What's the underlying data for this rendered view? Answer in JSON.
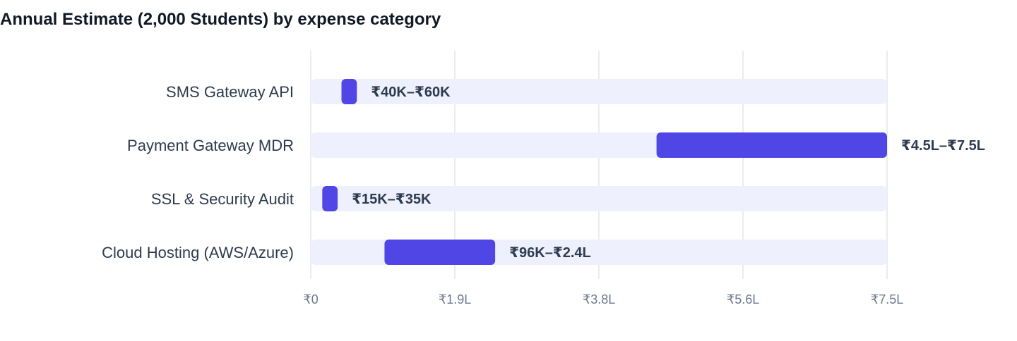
{
  "chart_data": {
    "type": "bar",
    "subtype": "horizontal-range",
    "title": "Annual Estimate (2,000 Students) by expense category",
    "categories": [
      "SMS Gateway API",
      "Payment Gateway MDR",
      "SSL & Security Audit",
      "Cloud Hosting (AWS/Azure)"
    ],
    "ranges": [
      {
        "low": 40000,
        "high": 60000,
        "label": "₹40K–₹60K"
      },
      {
        "low": 450000,
        "high": 750000,
        "label": "₹4.5L–₹7.5L"
      },
      {
        "low": 15000,
        "high": 35000,
        "label": "₹15K–₹35K"
      },
      {
        "low": 96000,
        "high": 240000,
        "label": "₹96K–₹2.4L"
      }
    ],
    "xlim": [
      0,
      750000
    ],
    "ticks": [
      {
        "value": 0,
        "label": "₹0"
      },
      {
        "value": 187500,
        "label": "₹1.9L"
      },
      {
        "value": 375000,
        "label": "₹3.8L"
      },
      {
        "value": 562500,
        "label": "₹5.6L"
      },
      {
        "value": 750000,
        "label": "₹7.5L"
      }
    ],
    "grid": true,
    "colors": {
      "bar": "#4f46e5",
      "track": "#eef1fd",
      "grid": "#e2e5ea"
    }
  }
}
